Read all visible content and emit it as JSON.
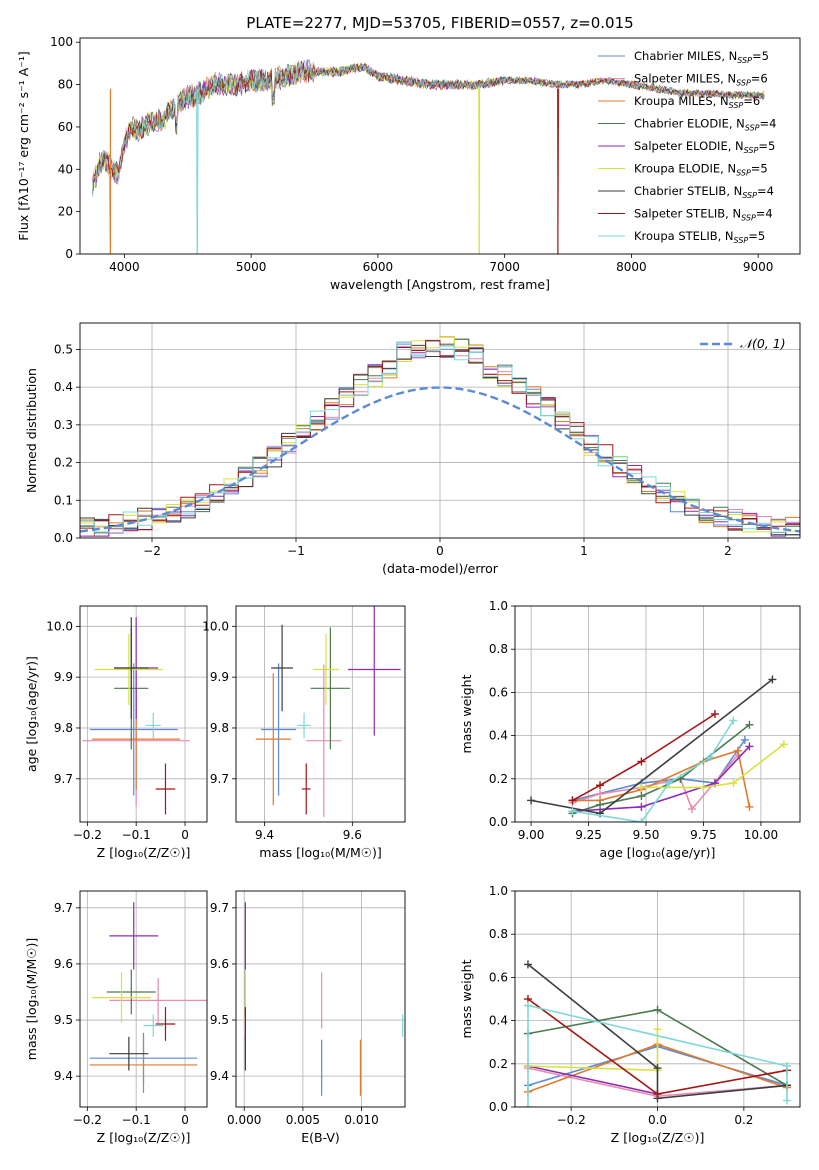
{
  "colors": {
    "chabrier_miles": "#5b8bd6",
    "salpeter_miles": "#e78bb0",
    "kroupa_miles": "#e07a2c",
    "chabrier_elodie": "#4a7a50",
    "salpeter_elodie": "#8e2bb8",
    "kroupa_elodie": "#d8e33a",
    "chabrier_stelib": "#3d3d3d",
    "salpeter_stelib": "#a31515",
    "kroupa_stelib": "#7fd8d8",
    "normal": "#5b8bd6",
    "grid": "#b0b0b0"
  },
  "chart_data": [
    {
      "type": "line",
      "id": "spectrum",
      "title": "PLATE=2277, MJD=53705, FIBERID=0557, z=0.015",
      "xlabel": "wavelength [Angstrom, rest frame]",
      "ylabel": "Flux [fλ10⁻¹⁷ erg cm⁻² s⁻¹ A⁻¹]",
      "xlim": [
        3650,
        9330
      ],
      "ylim": [
        0,
        102
      ],
      "xticks": [
        4000,
        5000,
        6000,
        7000,
        8000,
        9000
      ],
      "yticks": [
        0,
        20,
        40,
        60,
        80,
        100
      ],
      "grid": false,
      "legend": "top-right",
      "series": [
        {
          "name": "Chabrier MILES, N_SSP=5",
          "color_key": "chabrier_miles"
        },
        {
          "name": "Salpeter MILES, N_SSP=6",
          "color_key": "salpeter_miles"
        },
        {
          "name": "Kroupa MILES, N_SSP=6",
          "color_key": "kroupa_miles"
        },
        {
          "name": "Chabrier ELODIE, N_SSP=4",
          "color_key": "chabrier_elodie"
        },
        {
          "name": "Salpeter ELODIE, N_SSP=5",
          "color_key": "salpeter_elodie"
        },
        {
          "name": "Kroupa ELODIE, N_SSP=5",
          "color_key": "kroupa_elodie"
        },
        {
          "name": "Chabrier STELIB, N_SSP=4",
          "color_key": "chabrier_stelib"
        },
        {
          "name": "Salpeter STELIB, N_SSP=4",
          "color_key": "salpeter_stelib"
        },
        {
          "name": "Kroupa STELIB, N_SSP=5",
          "color_key": "kroupa_stelib"
        }
      ],
      "continuum_x": [
        3750,
        3800,
        3850,
        3900,
        3950,
        4000,
        4050,
        4100,
        4200,
        4300,
        4400,
        4500,
        4600,
        4700,
        4800,
        4900,
        5000,
        5100,
        5200,
        5300,
        5400,
        5500,
        5600,
        5700,
        5800,
        5900,
        6000,
        6200,
        6400,
        6600,
        6800,
        7000,
        7200,
        7400,
        7600,
        7800,
        8000,
        8200,
        8400,
        8600,
        8800,
        9000
      ],
      "continuum_y": [
        32,
        42,
        45,
        40,
        38,
        52,
        60,
        58,
        62,
        63,
        70,
        74,
        76,
        80,
        80,
        80,
        82,
        82,
        83,
        84,
        86,
        86,
        86,
        86,
        88,
        88,
        84,
        82,
        80,
        80,
        80,
        82,
        82,
        80,
        80,
        82,
        80,
        78,
        76,
        76,
        75,
        75
      ],
      "dips": [
        {
          "x": 3890,
          "y": 0,
          "color_key": "kroupa_miles"
        },
        {
          "x": 4575,
          "y": 0,
          "color_key": "kroupa_stelib"
        },
        {
          "x": 6800,
          "y": 0,
          "color_key": "kroupa_elodie"
        },
        {
          "x": 7420,
          "y": 0,
          "color_key": "salpeter_stelib"
        }
      ]
    },
    {
      "type": "step",
      "id": "residuals",
      "xlabel": "(data-model)/error",
      "ylabel": "Normed distribution",
      "xlim": [
        -2.5,
        2.5
      ],
      "ylim": [
        0,
        0.57
      ],
      "xticks": [
        -2,
        -1,
        0,
        1,
        2
      ],
      "yticks": [
        0.0,
        0.1,
        0.2,
        0.3,
        0.4,
        0.5
      ],
      "grid": true,
      "legend": "top-right",
      "legend_label": "𝒩(0, 1)",
      "bin_width": 0.1
    },
    {
      "type": "errorbar",
      "id": "age_vs_Z",
      "xlabel": "Z [log₁₀(Z/Z☉)]",
      "ylabel": "age  [log₁₀(age/yr)]",
      "xlim": [
        -0.215,
        0.045
      ],
      "ylim": [
        9.615,
        10.04
      ],
      "xticks": [
        -0.2,
        -0.1,
        0.0
      ],
      "yticks": [
        9.7,
        9.8,
        9.9,
        10.0
      ],
      "grid": true,
      "points": [
        {
          "x": -0.105,
          "y": 9.797,
          "xerr": 0.09,
          "yerr": 0.13,
          "color_key": "chabrier_miles"
        },
        {
          "x": -0.1,
          "y": 9.775,
          "xerr": 0.11,
          "yerr": 0.13,
          "color_key": "salpeter_miles"
        },
        {
          "x": -0.1,
          "y": 9.778,
          "xerr": 0.09,
          "yerr": 0.1,
          "color_key": "kroupa_miles"
        },
        {
          "x": -0.11,
          "y": 9.878,
          "xerr": 0.035,
          "yerr": 0.12,
          "color_key": "chabrier_elodie"
        },
        {
          "x": -0.1,
          "y": 9.918,
          "xerr": 0.045,
          "yerr": 0.1,
          "color_key": "salpeter_elodie"
        },
        {
          "x": -0.115,
          "y": 9.915,
          "xerr": 0.07,
          "yerr": 0.07,
          "color_key": "kroupa_elodie"
        },
        {
          "x": -0.11,
          "y": 9.918,
          "xerr": 0.035,
          "yerr": 0.1,
          "color_key": "chabrier_stelib"
        },
        {
          "x": -0.04,
          "y": 9.68,
          "xerr": 0.02,
          "yerr": 0.05,
          "color_key": "salpeter_stelib"
        },
        {
          "x": -0.065,
          "y": 9.805,
          "xerr": 0.015,
          "yerr": 0.025,
          "color_key": "kroupa_stelib"
        }
      ]
    },
    {
      "type": "errorbar",
      "id": "age_vs_mass",
      "xlabel": "mass [log₁₀(M/M☉)]",
      "ylabel": "",
      "xlim": [
        9.335,
        9.72
      ],
      "ylim": [
        9.615,
        10.04
      ],
      "xticks": [
        9.4,
        9.6
      ],
      "yticks": [
        9.7,
        9.8,
        9.9,
        10.0
      ],
      "grid": true,
      "points": [
        {
          "x": 9.432,
          "y": 9.797,
          "xerr": 0.04,
          "yerr": 0.13,
          "color_key": "chabrier_miles"
        },
        {
          "x": 9.535,
          "y": 9.775,
          "xerr": 0.04,
          "yerr": 0.15,
          "color_key": "salpeter_miles"
        },
        {
          "x": 9.42,
          "y": 9.778,
          "xerr": 0.04,
          "yerr": 0.13,
          "color_key": "kroupa_miles"
        },
        {
          "x": 9.55,
          "y": 9.878,
          "xerr": 0.045,
          "yerr": 0.12,
          "color_key": "chabrier_elodie"
        },
        {
          "x": 9.65,
          "y": 9.915,
          "xerr": 0.06,
          "yerr": 0.13,
          "color_key": "salpeter_elodie"
        },
        {
          "x": 9.54,
          "y": 9.915,
          "xerr": 0.03,
          "yerr": 0.07,
          "color_key": "kroupa_elodie"
        },
        {
          "x": 9.44,
          "y": 9.918,
          "xerr": 0.025,
          "yerr": 0.085,
          "color_key": "chabrier_stelib"
        },
        {
          "x": 9.495,
          "y": 9.68,
          "xerr": 0.01,
          "yerr": 0.05,
          "color_key": "salpeter_stelib"
        },
        {
          "x": 9.49,
          "y": 9.805,
          "xerr": 0.015,
          "yerr": 0.025,
          "color_key": "kroupa_stelib"
        }
      ]
    },
    {
      "type": "line",
      "id": "weight_vs_age",
      "xlabel": "age  [log₁₀(age/yr)]",
      "ylabel": "mass weight",
      "xlim": [
        8.93,
        10.17
      ],
      "ylim": [
        0,
        1.0
      ],
      "xticks": [
        9.0,
        9.25,
        9.5,
        9.75,
        10.0
      ],
      "xticklabels": [
        "9.00",
        "9.25",
        "9.50",
        "9.75",
        "10.00"
      ],
      "yticks": [
        0.0,
        0.2,
        0.4,
        0.6,
        0.8,
        1.0
      ],
      "grid": true,
      "series": [
        {
          "color_key": "chabrier_miles",
          "x": [
            9.18,
            9.48,
            9.65,
            9.8,
            9.93
          ],
          "y": [
            0.1,
            0.18,
            0.2,
            0.18,
            0.38
          ]
        },
        {
          "color_key": "salpeter_miles",
          "x": [
            9.18,
            9.3,
            9.48,
            9.65,
            9.7,
            9.9
          ],
          "y": [
            0.09,
            0.13,
            0.16,
            0.2,
            0.06,
            0.31
          ]
        },
        {
          "color_key": "kroupa_miles",
          "x": [
            9.18,
            9.3,
            9.48,
            9.75,
            9.9,
            9.95
          ],
          "y": [
            0.1,
            0.1,
            0.15,
            0.28,
            0.33,
            0.07
          ]
        },
        {
          "color_key": "chabrier_elodie",
          "x": [
            9.18,
            9.3,
            9.48,
            9.65,
            9.95
          ],
          "y": [
            0.04,
            0.08,
            0.12,
            0.2,
            0.45
          ]
        },
        {
          "color_key": "salpeter_elodie",
          "x": [
            9.18,
            9.48,
            9.8,
            9.95
          ],
          "y": [
            0.05,
            0.07,
            0.18,
            0.35
          ]
        },
        {
          "color_key": "kroupa_elodie",
          "x": [
            9.48,
            9.75,
            9.88,
            10.1
          ],
          "y": [
            0.16,
            0.16,
            0.18,
            0.36
          ]
        },
        {
          "color_key": "chabrier_stelib",
          "x": [
            9.0,
            9.3,
            10.05
          ],
          "y": [
            0.1,
            0.04,
            0.66
          ]
        },
        {
          "color_key": "salpeter_stelib",
          "x": [
            9.18,
            9.3,
            9.48,
            9.8
          ],
          "y": [
            0.1,
            0.17,
            0.28,
            0.5
          ]
        },
        {
          "color_key": "kroupa_stelib",
          "x": [
            9.18,
            9.48,
            9.6,
            9.78,
            9.88
          ],
          "y": [
            0.05,
            0.0,
            0.18,
            0.3,
            0.47
          ]
        }
      ]
    },
    {
      "type": "errorbar",
      "id": "mass_vs_Z",
      "xlabel": "Z [log₁₀(Z/Z☉)]",
      "ylabel": "mass [log₁₀(M/M☉)]",
      "xlim": [
        -0.215,
        0.045
      ],
      "ylim": [
        9.345,
        9.73
      ],
      "xticks": [
        -0.2,
        -0.1,
        0.0
      ],
      "yticks": [
        9.4,
        9.5,
        9.6,
        9.7
      ],
      "grid": true,
      "points": [
        {
          "x": -0.085,
          "y": 9.432,
          "xerr": 0.11,
          "yerr": 0.045,
          "color_key": "chabrier_miles"
        },
        {
          "x": -0.055,
          "y": 9.535,
          "xerr": 0.1,
          "yerr": 0.04,
          "color_key": "salpeter_miles"
        },
        {
          "x": -0.085,
          "y": 9.42,
          "xerr": 0.11,
          "yerr": 0.05,
          "color_key": "kroupa_miles"
        },
        {
          "x": -0.11,
          "y": 9.55,
          "xerr": 0.05,
          "yerr": 0.04,
          "color_key": "chabrier_elodie"
        },
        {
          "x": -0.105,
          "y": 9.65,
          "xerr": 0.05,
          "yerr": 0.06,
          "color_key": "salpeter_elodie"
        },
        {
          "x": -0.13,
          "y": 9.54,
          "xerr": 0.06,
          "yerr": 0.045,
          "color_key": "kroupa_elodie"
        },
        {
          "x": -0.115,
          "y": 9.44,
          "xerr": 0.04,
          "yerr": 0.03,
          "color_key": "chabrier_stelib"
        },
        {
          "x": -0.04,
          "y": 9.493,
          "xerr": 0.02,
          "yerr": 0.03,
          "color_key": "salpeter_stelib"
        },
        {
          "x": -0.065,
          "y": 9.49,
          "xerr": 0.02,
          "yerr": 0.02,
          "color_key": "kroupa_stelib"
        }
      ]
    },
    {
      "type": "errorbar",
      "id": "mass_vs_ebv",
      "xlabel": "E(B-V)",
      "ylabel": "",
      "xlim": [
        -0.0007,
        0.0137
      ],
      "ylim": [
        9.345,
        9.73
      ],
      "xticks": [
        0.0,
        0.005,
        0.01
      ],
      "xticklabels": [
        "0.000",
        "0.005",
        "0.010"
      ],
      "yticks": [
        9.4,
        9.5,
        9.6,
        9.7
      ],
      "grid": true,
      "points": [
        {
          "x": 0.0066,
          "y": 9.415,
          "xerr": 0,
          "yerr": 0.05,
          "color_key": "chabrier_miles"
        },
        {
          "x": 0.0066,
          "y": 9.535,
          "xerr": 0,
          "yerr": 0.05,
          "color_key": "salpeter_miles"
        },
        {
          "x": 0.0099,
          "y": 9.415,
          "xerr": 0,
          "yerr": 0.05,
          "color_key": "kroupa_miles"
        },
        {
          "x": 0.0001,
          "y": 9.55,
          "xerr": 0,
          "yerr": 0.04,
          "color_key": "chabrier_elodie"
        },
        {
          "x": 0.0001,
          "y": 9.65,
          "xerr": 0,
          "yerr": 0.06,
          "color_key": "salpeter_elodie"
        },
        {
          "x": 0.0001,
          "y": 9.545,
          "xerr": 0,
          "yerr": 0.045,
          "color_key": "kroupa_elodie"
        },
        {
          "x": 0.0001,
          "y": 9.44,
          "xerr": 0,
          "yerr": 0.03,
          "color_key": "chabrier_stelib"
        },
        {
          "x": 0.0001,
          "y": 9.493,
          "xerr": 0,
          "yerr": 0.03,
          "color_key": "salpeter_stelib"
        },
        {
          "x": 0.0135,
          "y": 9.49,
          "xerr": 0,
          "yerr": 0.02,
          "color_key": "kroupa_stelib"
        }
      ]
    },
    {
      "type": "line",
      "id": "weight_vs_Z",
      "xlabel": "Z [log₁₀(Z/Z☉)]",
      "ylabel": "mass weight",
      "xlim": [
        -0.33,
        0.33
      ],
      "ylim": [
        0,
        1.0
      ],
      "xticks": [
        -0.2,
        0.0,
        0.2
      ],
      "xticklabels": [
        "−0.2",
        "0.0",
        "0.2"
      ],
      "yticks": [
        0.0,
        0.2,
        0.4,
        0.6,
        0.8,
        1.0
      ],
      "grid": true,
      "series": [
        {
          "color_key": "chabrier_miles",
          "x": [
            -0.3,
            0.0,
            0.3
          ],
          "y": [
            0.1,
            0.28,
            0.1
          ]
        },
        {
          "color_key": "salpeter_miles",
          "x": [
            -0.3,
            0.0,
            0.3
          ],
          "y": [
            0.18,
            0.05,
            0.1
          ]
        },
        {
          "color_key": "kroupa_miles",
          "x": [
            -0.3,
            0.0,
            0.3
          ],
          "y": [
            0.07,
            0.29,
            0.09
          ]
        },
        {
          "color_key": "chabrier_elodie",
          "x": [
            -0.3,
            0.0,
            0.3
          ],
          "y": [
            0.34,
            0.45,
            0.1
          ]
        },
        {
          "color_key": "salpeter_elodie",
          "x": [
            -0.3,
            0.0
          ],
          "y": [
            0.19,
            0.06
          ]
        },
        {
          "color_key": "kroupa_elodie",
          "x": [
            -0.3,
            0.0,
            0.0
          ],
          "y": [
            0.19,
            0.17,
            0.36
          ]
        },
        {
          "color_key": "chabrier_stelib",
          "x": [
            -0.3,
            0.0,
            0.0,
            0.3
          ],
          "y": [
            0.66,
            0.18,
            0.04,
            0.1
          ]
        },
        {
          "color_key": "salpeter_stelib",
          "x": [
            -0.3,
            0.0,
            0.3
          ],
          "y": [
            0.5,
            0.06,
            0.17
          ]
        },
        {
          "color_key": "kroupa_stelib",
          "x": [
            -0.3,
            -0.3,
            0.3,
            0.3
          ],
          "y": [
            0.0,
            0.47,
            0.19,
            0.03
          ]
        }
      ]
    }
  ]
}
